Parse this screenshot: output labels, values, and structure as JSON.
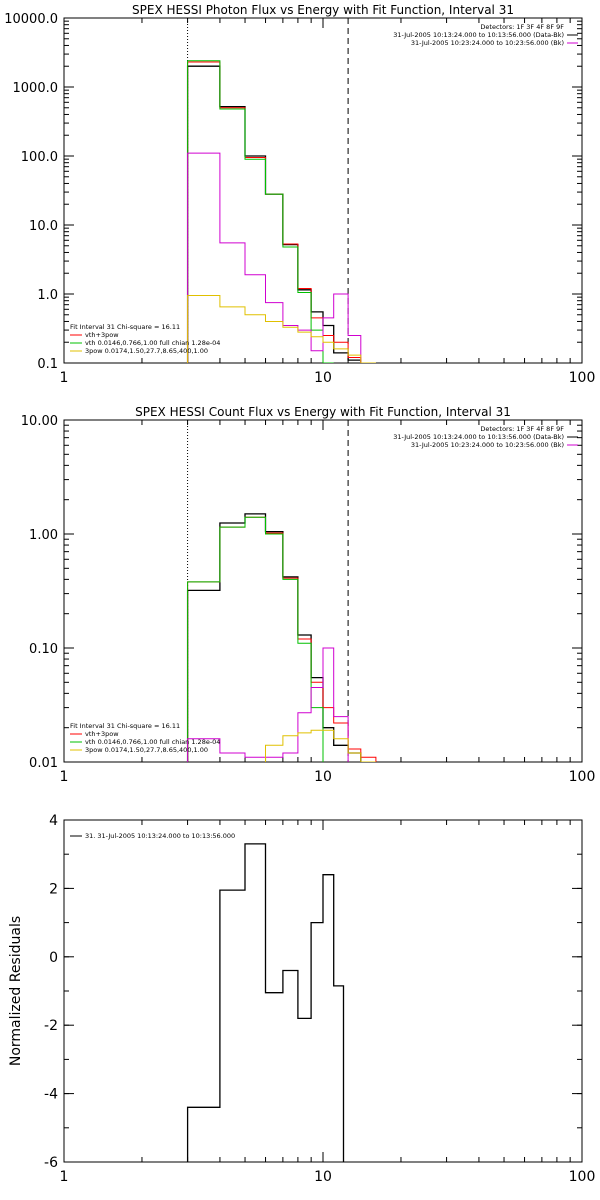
{
  "chart_data": [
    {
      "type": "line",
      "title": "SPEX HESSI Photon Flux vs Energy with Fit Function, Interval 31",
      "xscale": "log",
      "yscale": "log",
      "xlim": [
        1,
        100
      ],
      "ylim": [
        0.1,
        10000
      ],
      "xticks": [
        1,
        10,
        100
      ],
      "xticklabels": [
        "1",
        "10",
        "100"
      ],
      "yticks": [
        0.1,
        1,
        10,
        100,
        1000,
        10000
      ],
      "yticklabels": [
        "0.1",
        "1.0",
        "10.0",
        "100.0",
        "1000.0",
        "10000.0"
      ],
      "vlines": [
        {
          "x": 3.0,
          "style": "dotted"
        },
        {
          "x": 12.5,
          "style": "dashed"
        }
      ],
      "header_right": [
        "Detectors: 1F 3F 4F 8F 9F",
        "31-Jul-2005 10:13:24.000 to 10:13:56.000 (Data-Bk)",
        "31-Jul-2005 10:23:24.000 to 10:23:56.000 (Bk)"
      ],
      "header_swatches": [
        "#000000",
        "#d000d0"
      ],
      "legend_title": "Fit Interval 31    Chi-square = 16.11",
      "legend": [
        {
          "label": "vth+3pow",
          "color": "#ff0000"
        },
        {
          "label": "vth 0.0146,0.766,1.00  full chian 1.28e-04",
          "color": "#00c000"
        },
        {
          "label": "3pow 0.0174,1.50,27.7,8.65,400,1.00",
          "color": "#e0c000"
        }
      ],
      "bin_edges": [
        3.0,
        4.0,
        5.0,
        6.0,
        7.0,
        8.0,
        9.0,
        10.0,
        11.0,
        12.5,
        14.0,
        16.0
      ],
      "series": [
        {
          "color": "#000000",
          "width": 1.3,
          "values": [
            2000,
            520,
            100,
            28,
            5.2,
            1.15,
            0.55,
            0.35,
            0.14,
            0.11,
            null
          ]
        },
        {
          "color": "#ff0000",
          "width": 1,
          "values": [
            2300,
            500,
            95,
            28,
            5.3,
            1.2,
            0.45,
            0.25,
            0.2,
            0.12,
            0.1
          ]
        },
        {
          "color": "#00c000",
          "width": 1,
          "values": [
            2400,
            480,
            90,
            28,
            4.8,
            1.05,
            0.3,
            0.1,
            null,
            null,
            null
          ]
        },
        {
          "color": "#d000d0",
          "width": 1,
          "values": [
            110,
            5.5,
            1.9,
            0.75,
            0.35,
            0.3,
            0.15,
            0.45,
            1.0,
            0.25,
            null
          ]
        },
        {
          "color": "#e0c000",
          "width": 1,
          "values": [
            0.95,
            0.65,
            0.5,
            0.4,
            0.33,
            0.28,
            0.24,
            0.2,
            0.16,
            0.13,
            0.1
          ]
        }
      ]
    },
    {
      "type": "line",
      "title": "SPEX HESSI Count Flux vs Energy with Fit Function, Interval 31",
      "xscale": "log",
      "yscale": "log",
      "xlim": [
        1,
        100
      ],
      "ylim": [
        0.01,
        10
      ],
      "xticks": [
        1,
        10,
        100
      ],
      "xticklabels": [
        "1",
        "10",
        "100"
      ],
      "yticks": [
        0.01,
        0.1,
        1,
        10
      ],
      "yticklabels": [
        "0.01",
        "0.10",
        "1.00",
        "10.00"
      ],
      "vlines": [
        {
          "x": 3.0,
          "style": "dotted"
        },
        {
          "x": 12.5,
          "style": "dashed"
        }
      ],
      "header_right": [
        "Detectors: 1F 3F 4F 8F 9F",
        "31-Jul-2005 10:13:24.000 to 10:13:56.000 (Data-Bk)",
        "31-Jul-2005 10:23:24.000 to 10:23:56.000 (Bk)"
      ],
      "header_swatches": [
        "#000000",
        "#d000d0"
      ],
      "legend_title": "Fit Interval 31    Chi-square = 16.11",
      "legend": [
        {
          "label": "vth+3pow",
          "color": "#ff0000"
        },
        {
          "label": "vth 0.0146,0.766,1.00  full chian 1.28e-04",
          "color": "#00c000"
        },
        {
          "label": "3pow 0.0174,1.50,27.7,8.65,400,1.00",
          "color": "#e0c000"
        }
      ],
      "bin_edges": [
        3.0,
        4.0,
        5.0,
        6.0,
        7.0,
        8.0,
        9.0,
        10.0,
        11.0,
        12.5,
        14.0,
        16.0
      ],
      "series": [
        {
          "color": "#000000",
          "width": 1.3,
          "values": [
            0.32,
            1.25,
            1.5,
            1.05,
            0.42,
            0.13,
            0.055,
            0.02,
            0.014,
            0.012,
            null
          ]
        },
        {
          "color": "#ff0000",
          "width": 1,
          "values": [
            0.38,
            1.15,
            1.4,
            1.02,
            0.41,
            0.12,
            0.05,
            0.03,
            0.022,
            0.013,
            0.011
          ]
        },
        {
          "color": "#00c000",
          "width": 1,
          "values": [
            0.38,
            1.15,
            1.4,
            1.0,
            0.4,
            0.11,
            0.03,
            null,
            null,
            null,
            null
          ]
        },
        {
          "color": "#d000d0",
          "width": 1,
          "values": [
            0.016,
            0.012,
            0.011,
            0.011,
            0.012,
            0.027,
            0.045,
            0.1,
            0.025,
            null,
            null
          ]
        },
        {
          "color": "#e0c000",
          "width": 1,
          "values": [
            null,
            null,
            null,
            0.014,
            0.017,
            0.018,
            0.019,
            0.019,
            0.016,
            0.012,
            0.01
          ]
        }
      ]
    },
    {
      "type": "line",
      "title": "",
      "xscale": "log",
      "yscale": "linear",
      "xlim": [
        1,
        100
      ],
      "ylim": [
        -6,
        4
      ],
      "xticks": [
        1,
        10,
        100
      ],
      "xticklabels": [
        "1",
        "10",
        "100"
      ],
      "yticks": [
        -6,
        -4,
        -2,
        0,
        2,
        4
      ],
      "yticklabels": [
        "-6",
        "-4",
        "-2",
        "0",
        "2",
        "4"
      ],
      "ylabel": "Normalized Residuals",
      "legend": [
        {
          "label": "31. 31-Jul-2005 10:13:24.000 to 10:13:56.000",
          "color": "#000000"
        }
      ],
      "bin_edges": [
        3.0,
        4.0,
        5.0,
        6.0,
        7.0,
        8.0,
        9.0,
        10.0,
        11.0,
        12.0
      ],
      "series": [
        {
          "color": "#000000",
          "width": 1.3,
          "values": [
            -4.4,
            1.95,
            3.3,
            -1.05,
            -0.4,
            -1.8,
            1.0,
            2.4,
            -0.85
          ]
        }
      ]
    }
  ]
}
